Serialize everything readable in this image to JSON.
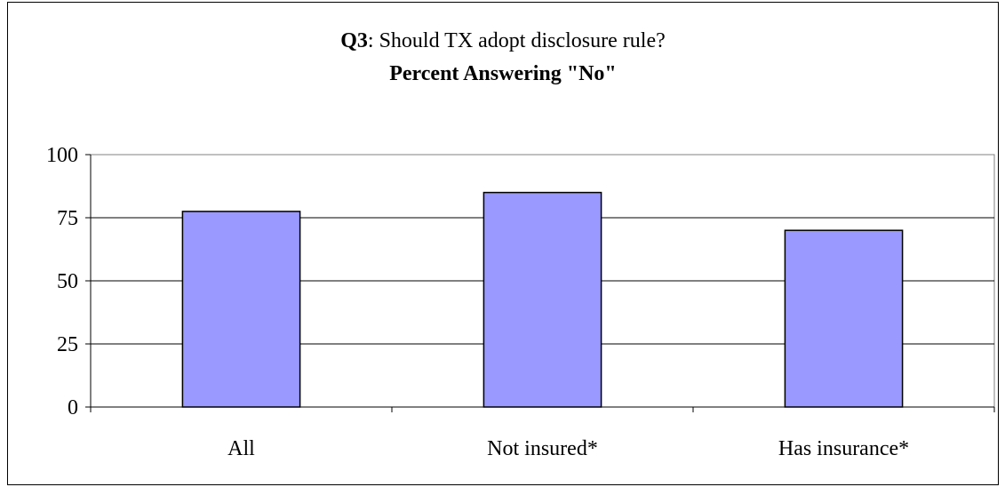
{
  "chart_data": {
    "type": "bar",
    "title_bold_part": "Q3",
    "title_rest": ": Should TX adopt disclosure rule?",
    "subtitle": "Percent Answering \"No\"",
    "categories": [
      "All",
      "Not insured*",
      "Has insurance*"
    ],
    "values": [
      77.5,
      85,
      70
    ],
    "ylim": [
      0,
      100
    ],
    "yticks": [
      "0",
      "25",
      "50",
      "75",
      "100"
    ],
    "ytick_values": [
      0,
      25,
      50,
      75,
      100
    ],
    "grid": true,
    "xlabel": "",
    "ylabel": "",
    "bar_color": "#9999ff",
    "bar_edge_color": "#000000"
  }
}
